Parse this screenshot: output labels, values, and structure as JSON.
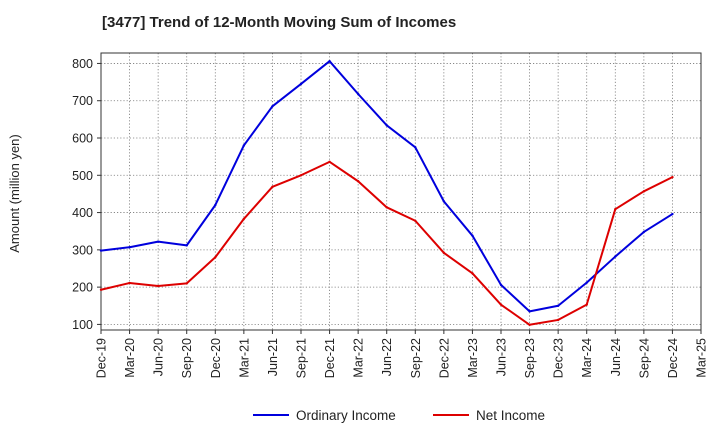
{
  "chart_data": {
    "type": "line",
    "title": "[3477]  Trend of 12-Month Moving Sum of Incomes",
    "xlabel": "",
    "ylabel": "Amount (million yen)",
    "categories": [
      "Dec-19",
      "Mar-20",
      "Jun-20",
      "Sep-20",
      "Dec-20",
      "Mar-21",
      "Jun-21",
      "Sep-21",
      "Dec-21",
      "Mar-22",
      "Jun-22",
      "Sep-22",
      "Dec-22",
      "Mar-23",
      "Jun-23",
      "Sep-23",
      "Dec-23",
      "Mar-24",
      "Jun-24",
      "Sep-24",
      "Dec-24",
      "Mar-25"
    ],
    "ylim": [
      85,
      828
    ],
    "yticks": [
      100,
      200,
      300,
      400,
      500,
      600,
      700,
      800
    ],
    "grid": true,
    "legend_position": "bottom",
    "series": [
      {
        "name": "Ordinary Income",
        "color": "#0000dd",
        "values": [
          298,
          307,
          322,
          312,
          420,
          580,
          685,
          745,
          806,
          718,
          634,
          575,
          430,
          338,
          206,
          135,
          150,
          212,
          282,
          348,
          396,
          null
        ]
      },
      {
        "name": "Net Income",
        "color": "#dd0000",
        "values": [
          193,
          211,
          203,
          210,
          280,
          383,
          469,
          500,
          536,
          484,
          414,
          378,
          292,
          237,
          153,
          99,
          112,
          153,
          409,
          457,
          495,
          null
        ]
      }
    ]
  }
}
